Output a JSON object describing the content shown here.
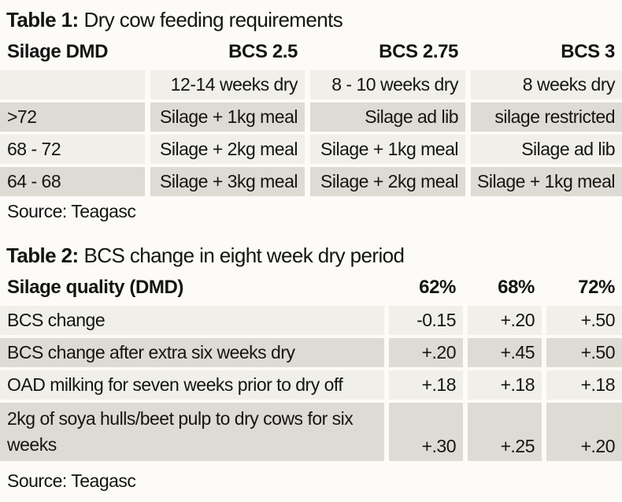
{
  "table1": {
    "title_prefix": "Table 1:",
    "title_rest": "Dry cow feeding requirements",
    "columns": [
      "Silage DMD",
      "BCS 2.5",
      "BCS 2.75",
      "BCS 3"
    ],
    "rows": [
      [
        "",
        "12-14 weeks dry",
        "8 - 10 weeks dry",
        "8 weeks dry"
      ],
      [
        ">72",
        "Silage + 1kg meal",
        "Silage ad lib",
        "silage restricted"
      ],
      [
        "68 - 72",
        "Silage + 2kg meal",
        "Silage + 1kg meal",
        "Silage ad lib"
      ],
      [
        "64 - 68",
        "Silage + 3kg meal",
        "Silage + 2kg meal",
        "Silage + 1kg meal"
      ]
    ],
    "source": "Source: Teagasc"
  },
  "table2": {
    "title_prefix": "Table 2:",
    "title_rest": "BCS change in eight week dry period",
    "columns": [
      "Silage quality (DMD)",
      "62%",
      "68%",
      "72%"
    ],
    "rows": [
      [
        "BCS change",
        "-0.15",
        "+.20",
        "+.50"
      ],
      [
        "BCS change after extra six weeks dry",
        "+.20",
        "+.45",
        "+.50"
      ],
      [
        "OAD milking for seven weeks prior to dry off",
        "+.18",
        "+.18",
        "+.18"
      ],
      [
        "2kg of soya hulls/beet pulp to dry cows for six weeks",
        "+.30",
        "+.25",
        "+.20"
      ]
    ],
    "source": "Source: Teagasc"
  },
  "colors": {
    "row_light": "#f0efe9",
    "row_dark": "#dddbd3",
    "text": "#141414",
    "background": "#fcfbf7"
  }
}
